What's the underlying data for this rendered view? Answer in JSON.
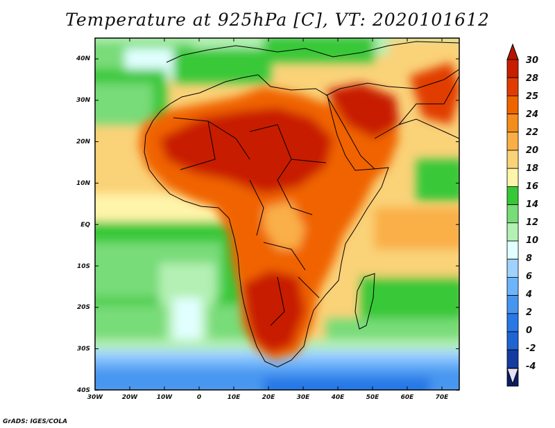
{
  "title": "Temperature at 925hPa [C], VT: 2020101612",
  "credit": "GrADS: IGES/COLA",
  "map": {
    "lon_ticks": [
      "30W",
      "20W",
      "10W",
      "0",
      "10E",
      "20E",
      "30E",
      "40E",
      "50E",
      "60E",
      "70E"
    ],
    "lat_ticks": [
      "40N",
      "30N",
      "20N",
      "10N",
      "EQ",
      "10S",
      "20S",
      "30S",
      "40S"
    ]
  },
  "colorbar": {
    "labels": [
      "30",
      "28",
      "25",
      "24",
      "22",
      "20",
      "18",
      "16",
      "14",
      "12",
      "10",
      "8",
      "6",
      "4",
      "2",
      "0",
      "-2",
      "-4"
    ],
    "colors": [
      "#c81e00",
      "#e13c00",
      "#f06400",
      "#f58c1e",
      "#faaf46",
      "#fad278",
      "#fff5aa",
      "#37c837",
      "#78dc78",
      "#b4f0b4",
      "#e1ffff",
      "#a0d2ff",
      "#6eb4fa",
      "#4696f0",
      "#2878e6",
      "#1e64d2",
      "#143ca0",
      "#0a1e64"
    ],
    "top_arrow_color": "#b41400",
    "bottom_arrow_color": "#e1e1ff"
  }
}
